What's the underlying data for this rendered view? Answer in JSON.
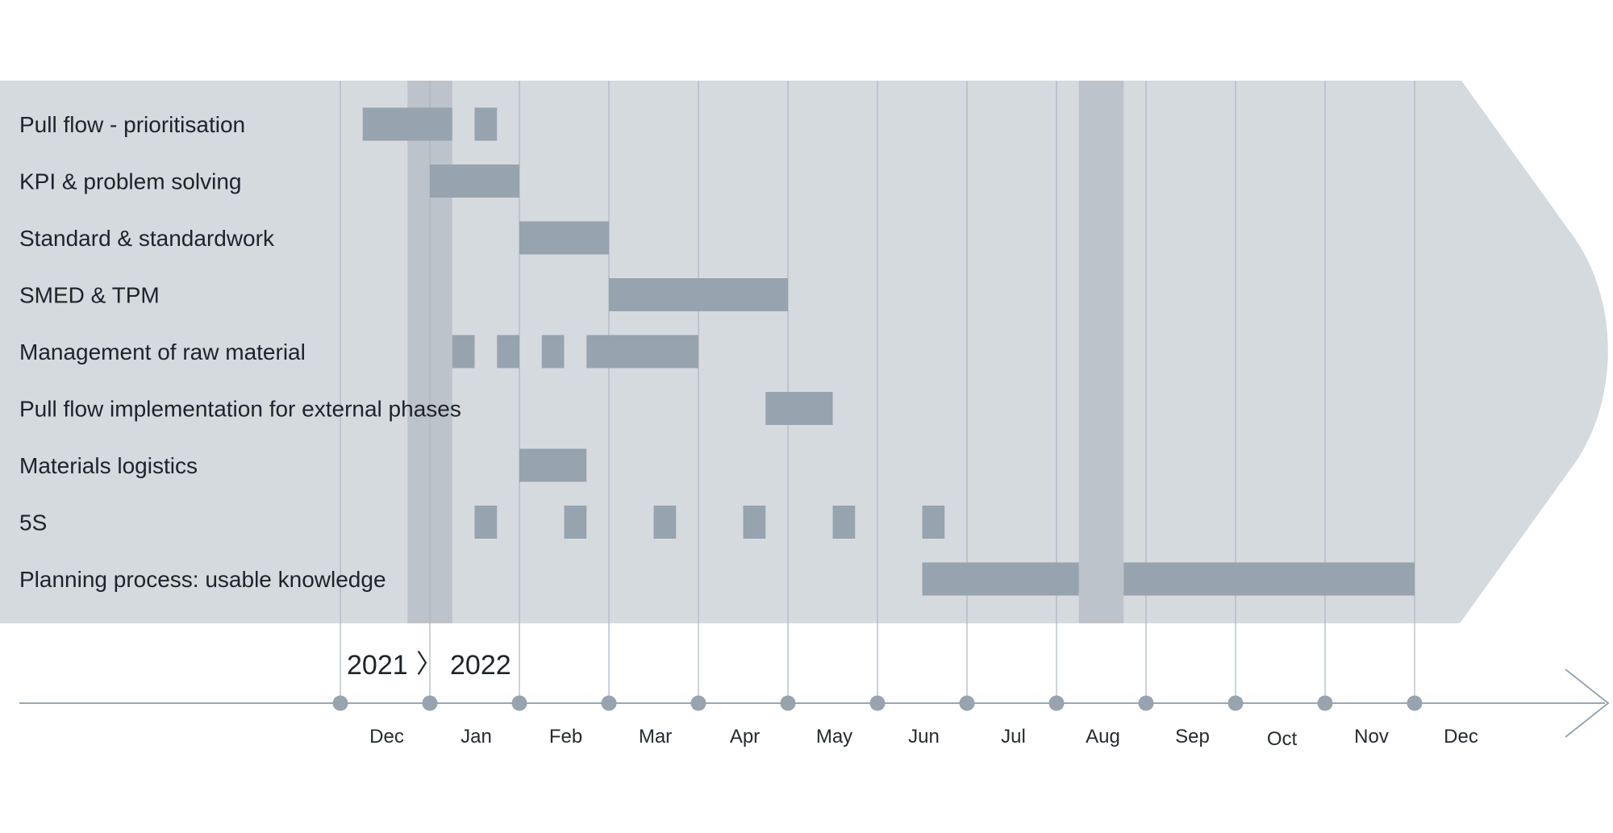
{
  "chart_data": {
    "type": "gantt",
    "year_labels": {
      "start": "2021",
      "separator": "〉",
      "end": "2022"
    },
    "months": [
      "Dec",
      "Jan",
      "Feb",
      "Mar",
      "Apr",
      "May",
      "Jun",
      "Jul",
      "Aug",
      "Sep",
      "Oct",
      "Nov",
      "Dec"
    ],
    "x_unit": "months since start of Dec 2021",
    "shaded_periods": [
      {
        "start": 0.75,
        "end": 1.25
      },
      {
        "start": 8.25,
        "end": 8.75
      }
    ],
    "tasks": [
      {
        "label": "Pull flow - prioritisation",
        "segments": [
          [
            0.25,
            1.25
          ],
          [
            1.5,
            1.75
          ]
        ]
      },
      {
        "label": "KPI & problem solving",
        "segments": [
          [
            1.0,
            2.0
          ]
        ]
      },
      {
        "label": "Standard & standardwork",
        "segments": [
          [
            2.0,
            3.0
          ]
        ]
      },
      {
        "label": "SMED & TPM",
        "segments": [
          [
            3.0,
            5.0
          ]
        ]
      },
      {
        "label": "Management of raw material",
        "segments": [
          [
            1.25,
            1.5
          ],
          [
            1.75,
            2.0
          ],
          [
            2.25,
            2.5
          ],
          [
            2.75,
            4.0
          ]
        ]
      },
      {
        "label": "Pull flow implementation for external phases",
        "segments": [
          [
            4.75,
            5.5
          ]
        ]
      },
      {
        "label": "Materials logistics",
        "segments": [
          [
            2.0,
            2.75
          ]
        ]
      },
      {
        "label": "5S",
        "segments": [
          [
            1.5,
            1.75
          ],
          [
            2.5,
            2.75
          ],
          [
            3.5,
            3.75
          ],
          [
            4.5,
            4.75
          ],
          [
            5.5,
            5.75
          ],
          [
            6.5,
            6.75
          ]
        ]
      },
      {
        "label": "Planning process: usable knowledge",
        "segments": [
          [
            6.5,
            8.25
          ],
          [
            8.75,
            12.0
          ]
        ]
      }
    ],
    "colors": {
      "panel": "#d5dadf",
      "bar": "#97a3ae",
      "shade": "#bcc3ca",
      "gridline": "#aeb6be",
      "axis": "#9ba6b0",
      "dot": "#97a3ae",
      "text": "#1f2328",
      "month_text": "#262a2e"
    }
  }
}
